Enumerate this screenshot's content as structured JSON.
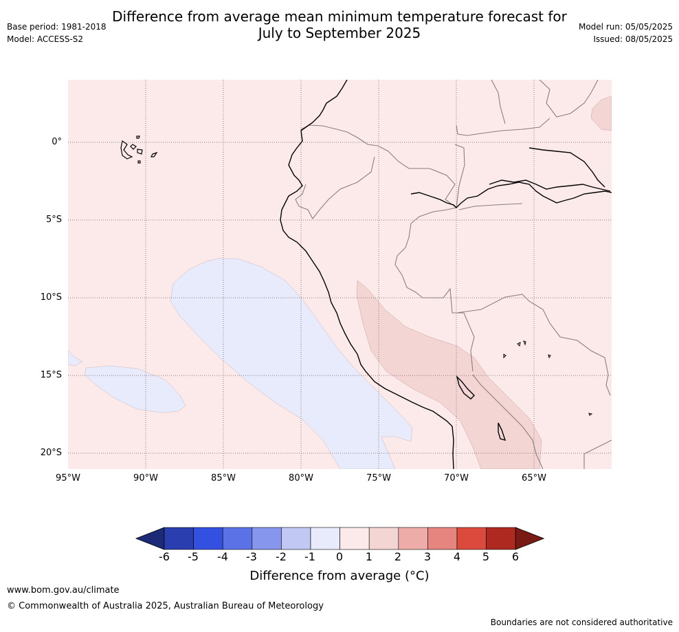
{
  "title_line1": "Difference from average mean minimum temperature forecast for",
  "title_line2": "July to September 2025",
  "base_period": "Base period: 1981-2018",
  "model": "Model: ACCESS-S2",
  "model_run": "Model run: 05/05/2025",
  "issued": "Issued: 08/05/2025",
  "lat_labels": [
    "0°",
    "5°S",
    "10°S",
    "15°S",
    "20°S"
  ],
  "lon_labels": [
    "95°W",
    "90°W",
    "85°W",
    "80°W",
    "75°W",
    "70°W",
    "65°W"
  ],
  "colorbar": {
    "ticks": [
      "-6",
      "-5",
      "-4",
      "-3",
      "-2",
      "-1",
      "0",
      "1",
      "2",
      "3",
      "4",
      "5",
      "6"
    ],
    "colors": [
      "#1c2a78",
      "#2b3eb0",
      "#3350e0",
      "#5b72e6",
      "#8696ec",
      "#c2c8f4",
      "#e8ebfb",
      "#fbeae9",
      "#f3d5d4",
      "#eeaca9",
      "#e6857f",
      "#dc4a3e",
      "#ae2920",
      "#7a1a14"
    ],
    "label": "Difference from average (°C)"
  },
  "footer": {
    "url": "www.bom.gov.au/climate",
    "copyright": "© Commonwealth of Australia 2025, Australian Bureau of Meteorology",
    "disclaimer": "Boundaries are not considered authoritative"
  }
}
